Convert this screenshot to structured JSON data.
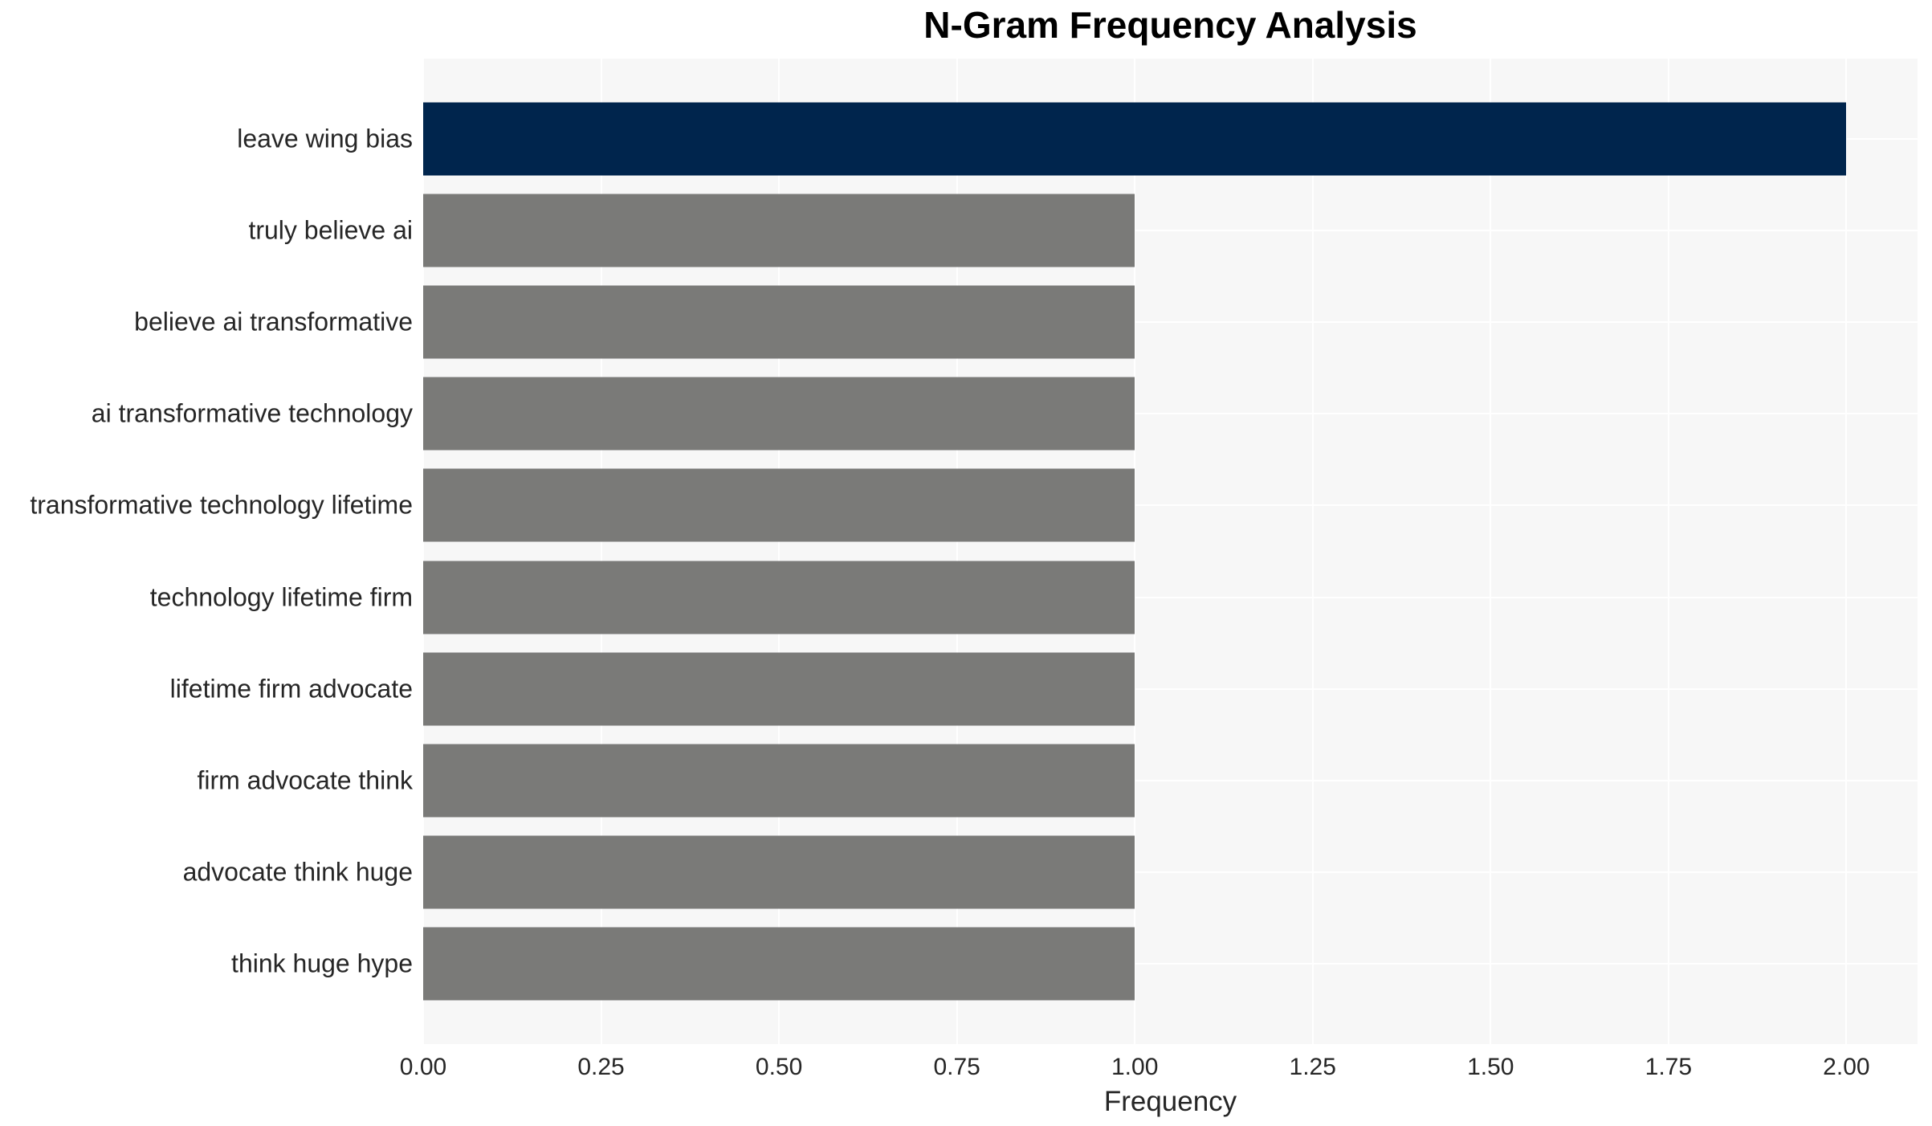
{
  "title": "N-Gram Frequency Analysis",
  "colors": {
    "bar_highlight": "#00254d",
    "bar_default": "#7a7a78",
    "plot_background": "#f7f7f7",
    "gridline": "#ffffff",
    "tick_text": "#262626",
    "title_text": "#000000"
  },
  "chart_data": {
    "type": "bar",
    "orientation": "horizontal",
    "title": "N-Gram Frequency Analysis",
    "xlabel": "Frequency",
    "ylabel": "",
    "grid": true,
    "legend": false,
    "xlim": [
      0,
      2.1
    ],
    "categories": [
      "leave wing bias",
      "truly believe ai",
      "believe ai transformative",
      "ai transformative technology",
      "transformative technology lifetime",
      "technology lifetime firm",
      "lifetime firm advocate",
      "firm advocate think",
      "advocate think huge",
      "think huge hype"
    ],
    "values": [
      2,
      1,
      1,
      1,
      1,
      1,
      1,
      1,
      1,
      1
    ],
    "bar_colors": [
      "#00254d",
      "#7a7a78",
      "#7a7a78",
      "#7a7a78",
      "#7a7a78",
      "#7a7a78",
      "#7a7a78",
      "#7a7a78",
      "#7a7a78",
      "#7a7a78"
    ],
    "x_ticks": [
      0,
      0.25,
      0.5,
      0.75,
      1.0,
      1.25,
      1.5,
      1.75,
      2.0
    ],
    "x_tick_labels": [
      "0.00",
      "0.25",
      "0.50",
      "0.75",
      "1.00",
      "1.25",
      "1.50",
      "1.75",
      "2.00"
    ]
  }
}
